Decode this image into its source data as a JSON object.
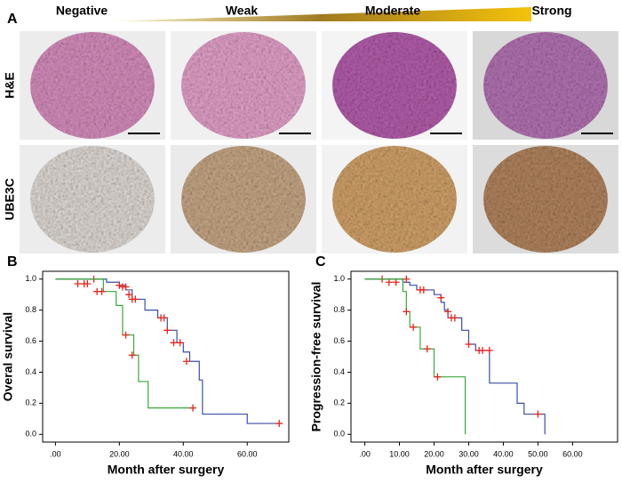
{
  "panel_a": {
    "label": "A",
    "columns": [
      "Negative",
      "Weak",
      "Moderate",
      "Strong"
    ],
    "rows": [
      "H&E",
      "UBE3C"
    ]
  },
  "chart_data": [
    {
      "type": "km",
      "label": "B",
      "y_label": "Overal survival",
      "x_label": "Month after surgery",
      "xlim": [
        -4,
        73
      ],
      "ylim": [
        -0.05,
        1.05
      ],
      "xticks": [
        {
          "value": 0,
          "label": ".00"
        },
        {
          "value": 20,
          "label": "20.00"
        },
        {
          "value": 40,
          "label": "40.00"
        },
        {
          "value": 60,
          "label": "60.00"
        }
      ],
      "yticks": [
        {
          "value": 0,
          "label": "0.0"
        },
        {
          "value": 0.2,
          "label": "0.2"
        },
        {
          "value": 0.4,
          "label": "0.4"
        },
        {
          "value": 0.6,
          "label": "0.6"
        },
        {
          "value": 0.8,
          "label": "0.8"
        },
        {
          "value": 1,
          "label": "1.0"
        }
      ],
      "censor_color": "#e8241f",
      "series": [
        {
          "color": "#3a4fa8",
          "x": [
            0,
            16,
            20,
            22,
            24,
            28,
            32,
            35,
            38,
            40,
            42,
            45,
            46,
            60,
            70
          ],
          "values": [
            1,
            0.98,
            0.96,
            0.93,
            0.87,
            0.8,
            0.75,
            0.67,
            0.59,
            0.53,
            0.47,
            0.35,
            0.13,
            0.07,
            0.07
          ],
          "censored_x": [
            7,
            9,
            10,
            12,
            20,
            21,
            22,
            23,
            24,
            25,
            33,
            34,
            35,
            37,
            39,
            41,
            70
          ],
          "censored_values": [
            0.97,
            0.97,
            0.97,
            1,
            0.96,
            0.95,
            0.95,
            0.9,
            0.87,
            0.87,
            0.75,
            0.75,
            0.67,
            0.59,
            0.59,
            0.47,
            0.07
          ]
        },
        {
          "color": "#3aa83a",
          "x": [
            0,
            15,
            19,
            21,
            24.5,
            26,
            29,
            43
          ],
          "values": [
            1,
            0.92,
            0.83,
            0.64,
            0.51,
            0.34,
            0.17,
            0.17
          ],
          "censored_x": [
            13,
            14.5,
            22,
            24,
            43
          ],
          "censored_values": [
            0.92,
            0.92,
            0.64,
            0.51,
            0.17
          ]
        }
      ]
    },
    {
      "type": "km",
      "label": "C",
      "y_label": "Progression-free survival",
      "x_label": "Month after surgery",
      "xlim": [
        -4,
        73
      ],
      "ylim": [
        -0.05,
        1.05
      ],
      "xticks": [
        {
          "value": 0,
          "label": ".00"
        },
        {
          "value": 10,
          "label": "10.00"
        },
        {
          "value": 20,
          "label": "20.00"
        },
        {
          "value": 30,
          "label": "30.00"
        },
        {
          "value": 40,
          "label": "40.00"
        },
        {
          "value": 50,
          "label": "50.00"
        },
        {
          "value": 60,
          "label": "60.00"
        }
      ],
      "yticks": [
        {
          "value": 0,
          "label": "0.0"
        },
        {
          "value": 0.2,
          "label": "0.2"
        },
        {
          "value": 0.4,
          "label": "0.4"
        },
        {
          "value": 0.6,
          "label": "0.6"
        },
        {
          "value": 0.8,
          "label": "0.8"
        },
        {
          "value": 1,
          "label": "1.0"
        }
      ],
      "censor_color": "#e8241f",
      "series": [
        {
          "color": "#3a4fa8",
          "x": [
            0,
            11,
            13,
            15,
            20,
            22,
            23,
            24,
            28,
            30,
            32,
            36,
            44,
            46,
            52
          ],
          "values": [
            1,
            0.98,
            0.96,
            0.93,
            0.9,
            0.85,
            0.8,
            0.75,
            0.67,
            0.58,
            0.54,
            0.33,
            0.2,
            0.13,
            0
          ],
          "censored_x": [
            5,
            7,
            9,
            12,
            16,
            17,
            22,
            24,
            25,
            26,
            30,
            33,
            34,
            36,
            50
          ],
          "censored_values": [
            1,
            0.98,
            0.98,
            1,
            0.93,
            0.93,
            0.88,
            0.79,
            0.75,
            0.75,
            0.58,
            0.54,
            0.54,
            0.54,
            0.13
          ]
        },
        {
          "color": "#3aa83a",
          "x": [
            0,
            11,
            12,
            13,
            16,
            20,
            29
          ],
          "values": [
            1,
            0.92,
            0.79,
            0.69,
            0.55,
            0.37,
            0
          ],
          "censored_x": [
            12,
            14,
            18,
            21
          ],
          "censored_values": [
            0.79,
            0.69,
            0.55,
            0.37
          ]
        }
      ]
    }
  ]
}
